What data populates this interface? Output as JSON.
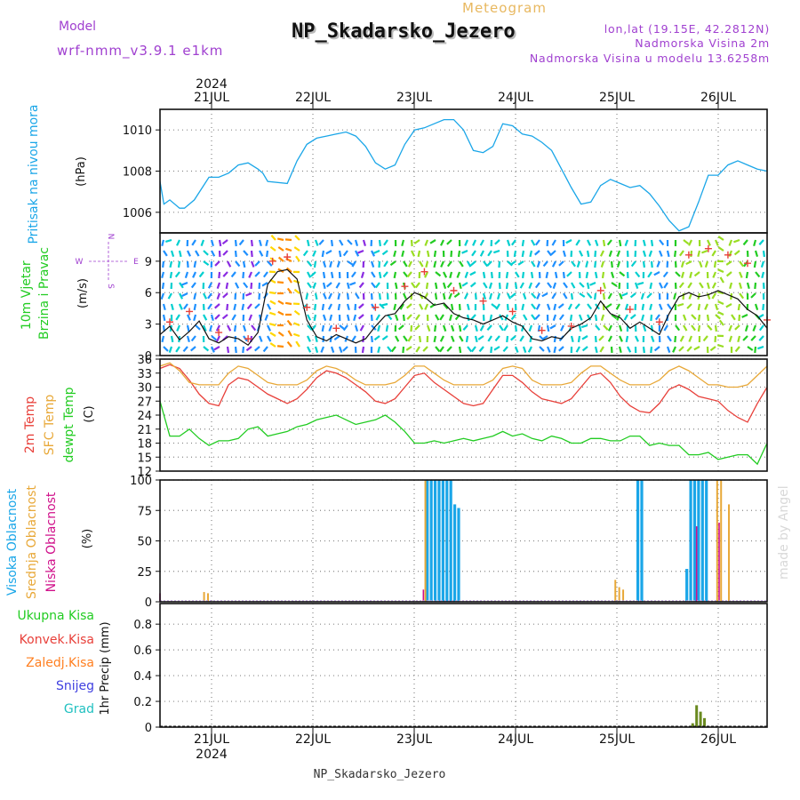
{
  "header": {
    "model_label": "Model",
    "model_name": "wrf-nmm_v3.9.1  e1km",
    "meteogram_label": "Meteogram",
    "station_title": "NP_Skadarsko_Jezero",
    "coords": "lon,lat (19.15E, 42.2812N)",
    "elevation": "Nadmorska Visina 2m",
    "model_elevation": "Nadmorska Visina u modelu 13.6258m",
    "year_top": "2024",
    "year_bottom": "2024",
    "footer_station": "NP_Skadarsko_Jezero",
    "watermark": "made by Angel"
  },
  "days": [
    "21JUL",
    "22JUL",
    "23JUL",
    "24JUL",
    "25JUL",
    "26JUL"
  ],
  "colors": {
    "pressure": "#1aa6e8",
    "temp2m": "#e8403a",
    "sfc": "#e8a838",
    "dewpt": "#22cc22",
    "wind_speed": "#111111",
    "gust": "#e8403a",
    "high_cloud": "#1aa6e8",
    "mid_cloud": "#e8a838",
    "low_cloud": "#d0108a",
    "total_precip": "#22bb22",
    "conv_precip": "#e8403a",
    "frozen_precip": "#ff7f20",
    "snow": "#4040e0",
    "hail": "#20c0c0",
    "grid": "#888888",
    "title_purple": "#a040d0"
  },
  "chart_data": [
    {
      "type": "line",
      "panel": "pressure",
      "label": "Pritisak na nivou mora",
      "ylabel": "(hPa)",
      "yticks": [
        "1006",
        "1008",
        "1010"
      ],
      "ylim": [
        1005,
        1011
      ],
      "xlim_days": [
        0,
        6.2
      ],
      "series": [
        {
          "name": "Pritisak na nivou mora",
          "x": [
            0,
            0.04,
            0.1,
            0.2,
            0.25,
            0.35,
            0.5,
            0.6,
            0.7,
            0.8,
            0.9,
            1.0,
            1.05,
            1.1,
            1.3,
            1.4,
            1.5,
            1.6,
            1.7,
            1.8,
            1.9,
            2.0,
            2.1,
            2.2,
            2.3,
            2.4,
            2.5,
            2.6,
            2.7,
            2.8,
            2.9,
            3.0,
            3.1,
            3.2,
            3.3,
            3.4,
            3.5,
            3.6,
            3.7,
            3.8,
            3.9,
            4.0,
            4.1,
            4.2,
            4.3,
            4.4,
            4.5,
            4.6,
            4.7,
            4.8,
            4.9,
            5.0,
            5.1,
            5.2,
            5.3,
            5.4,
            5.5,
            5.6,
            5.7,
            5.8,
            5.9,
            6.0,
            6.1,
            6.2
          ],
          "values": [
            1007.5,
            1006.4,
            1006.6,
            1006.2,
            1006.2,
            1006.6,
            1007.7,
            1007.7,
            1007.9,
            1008.3,
            1008.4,
            1008.1,
            1007.9,
            1007.5,
            1007.4,
            1008.5,
            1009.3,
            1009.6,
            1009.7,
            1009.8,
            1009.9,
            1009.7,
            1009.2,
            1008.4,
            1008.1,
            1008.3,
            1009.3,
            1010.0,
            1010.1,
            1010.3,
            1010.5,
            1010.5,
            1010.0,
            1009.0,
            1008.9,
            1009.2,
            1010.3,
            1010.2,
            1009.8,
            1009.7,
            1009.4,
            1009.0,
            1008.1,
            1007.2,
            1006.4,
            1006.5,
            1007.3,
            1007.6,
            1007.4,
            1007.2,
            1007.3,
            1006.9,
            1006.3,
            1005.6,
            1005.1,
            1005.3,
            1006.5,
            1007.8,
            1007.8,
            1008.3,
            1008.5,
            1008.3,
            1008.1,
            1008.0
          ]
        }
      ]
    },
    {
      "type": "line",
      "panel": "wind",
      "label": "10m Vjetar Brzina i Pravac",
      "ylabel": "(m/s)",
      "compass": [
        "N",
        "W",
        "E",
        "S"
      ],
      "yticks": [
        "0",
        "3",
        "6",
        "9"
      ],
      "ylim": [
        0,
        11.7
      ],
      "series": [
        {
          "name": "10m Vjetar Brzina",
          "x": [
            0,
            0.1,
            0.2,
            0.3,
            0.4,
            0.5,
            0.6,
            0.7,
            0.8,
            0.9,
            1.0,
            1.1,
            1.2,
            1.3,
            1.4,
            1.5,
            1.6,
            1.7,
            1.8,
            1.9,
            2.0,
            2.1,
            2.2,
            2.3,
            2.4,
            2.5,
            2.6,
            2.7,
            2.8,
            2.9,
            3.0,
            3.1,
            3.2,
            3.3,
            3.4,
            3.5,
            3.6,
            3.7,
            3.8,
            3.9,
            4.0,
            4.1,
            4.2,
            4.3,
            4.4,
            4.5,
            4.6,
            4.7,
            4.8,
            4.9,
            5.0,
            5.1,
            5.2,
            5.3,
            5.4,
            5.5,
            5.6,
            5.7,
            5.8,
            5.9,
            6.0,
            6.1,
            6.2
          ],
          "values": [
            2.0,
            2.8,
            1.5,
            2.3,
            3.3,
            1.6,
            1.2,
            1.8,
            1.6,
            1.0,
            2.2,
            6.8,
            8.0,
            8.2,
            7.3,
            3.4,
            1.8,
            1.4,
            2.0,
            1.6,
            1.2,
            1.6,
            2.8,
            3.8,
            4.0,
            5.2,
            6.0,
            5.6,
            4.8,
            5.0,
            4.0,
            3.6,
            3.4,
            3.0,
            3.4,
            3.8,
            3.2,
            2.8,
            1.6,
            1.4,
            1.8,
            1.6,
            2.6,
            3.0,
            3.6,
            5.2,
            4.0,
            3.6,
            2.6,
            3.2,
            2.6,
            2.0,
            4.0,
            5.6,
            6.0,
            5.6,
            5.8,
            6.2,
            5.8,
            5.4,
            4.4,
            3.8,
            2.6
          ]
        },
        {
          "name": "Udari vjetra",
          "x": [
            0.1,
            0.3,
            0.6,
            0.9,
            1.15,
            1.3,
            1.5,
            1.8,
            2.2,
            2.5,
            2.7,
            3.0,
            3.3,
            3.6,
            3.9,
            4.2,
            4.5,
            4.8,
            5.1,
            5.4,
            5.6,
            5.8,
            6.0,
            6.2
          ],
          "values": [
            3.2,
            4.2,
            2.2,
            1.6,
            9.0,
            9.4,
            4.6,
            2.6,
            4.6,
            6.6,
            8.0,
            6.2,
            5.2,
            4.2,
            2.4,
            2.8,
            6.2,
            4.4,
            3.2,
            9.6,
            10.2,
            9.6,
            8.8,
            3.4
          ]
        }
      ]
    },
    {
      "type": "line",
      "panel": "temperature",
      "labels": [
        "2m Temp",
        "SFC Temp",
        "dewpt Temp"
      ],
      "ylabel": "(C)",
      "yticks": [
        "12",
        "15",
        "18",
        "21",
        "24",
        "27",
        "30",
        "33",
        "36"
      ],
      "ylim": [
        12,
        36
      ],
      "series": [
        {
          "name": "2m Temp",
          "x": [
            0,
            0.1,
            0.2,
            0.3,
            0.4,
            0.5,
            0.6,
            0.7,
            0.8,
            0.9,
            1.0,
            1.1,
            1.2,
            1.3,
            1.4,
            1.5,
            1.6,
            1.7,
            1.8,
            1.9,
            2.0,
            2.1,
            2.2,
            2.3,
            2.4,
            2.5,
            2.6,
            2.7,
            2.8,
            2.9,
            3.0,
            3.1,
            3.2,
            3.3,
            3.4,
            3.5,
            3.6,
            3.7,
            3.8,
            3.9,
            4.0,
            4.1,
            4.2,
            4.3,
            4.4,
            4.5,
            4.6,
            4.7,
            4.8,
            4.9,
            5.0,
            5.1,
            5.2,
            5.3,
            5.4,
            5.5,
            5.6,
            5.7,
            5.8,
            5.9,
            6.0,
            6.1,
            6.2
          ],
          "values": [
            34.0,
            34.8,
            34.0,
            31.5,
            28.5,
            26.5,
            26.0,
            30.5,
            32.0,
            31.5,
            30.0,
            28.5,
            27.5,
            26.5,
            27.5,
            29.5,
            32.0,
            33.5,
            33.0,
            32.0,
            30.5,
            29.0,
            27.0,
            26.5,
            27.5,
            30.0,
            32.5,
            33.0,
            31.0,
            29.5,
            28.0,
            26.5,
            26.0,
            26.5,
            29.5,
            32.5,
            32.5,
            31.0,
            29.0,
            27.5,
            27.0,
            26.5,
            27.5,
            30.0,
            32.5,
            33.0,
            31.0,
            28.0,
            26.0,
            24.8,
            24.5,
            26.5,
            29.5,
            30.5,
            29.5,
            28.0,
            27.5,
            27.0,
            25.0,
            23.5,
            22.5,
            26.5,
            30.0
          ]
        },
        {
          "name": "SFC Temp",
          "x": [
            0,
            0.1,
            0.2,
            0.3,
            0.4,
            0.5,
            0.6,
            0.7,
            0.8,
            0.9,
            1.0,
            1.1,
            1.2,
            1.3,
            1.4,
            1.5,
            1.6,
            1.7,
            1.8,
            1.9,
            2.0,
            2.1,
            2.2,
            2.3,
            2.4,
            2.5,
            2.6,
            2.7,
            2.8,
            2.9,
            3.0,
            3.1,
            3.2,
            3.3,
            3.4,
            3.5,
            3.6,
            3.7,
            3.8,
            3.9,
            4.0,
            4.1,
            4.2,
            4.3,
            4.4,
            4.5,
            4.6,
            4.7,
            4.8,
            4.9,
            5.0,
            5.1,
            5.2,
            5.3,
            5.4,
            5.5,
            5.6,
            5.7,
            5.8,
            5.9,
            6.0,
            6.1,
            6.2
          ],
          "values": [
            34.5,
            35.2,
            33.5,
            31.0,
            30.5,
            30.5,
            30.5,
            33.0,
            34.5,
            34.0,
            32.5,
            31.0,
            30.5,
            30.5,
            30.5,
            31.5,
            33.5,
            34.5,
            34.0,
            33.0,
            31.5,
            30.5,
            30.5,
            30.5,
            31.0,
            32.5,
            34.5,
            34.5,
            33.0,
            31.5,
            30.5,
            30.5,
            30.5,
            30.5,
            31.5,
            34.0,
            34.5,
            34.0,
            31.5,
            30.5,
            30.5,
            30.5,
            31.0,
            33.0,
            34.5,
            34.5,
            33.0,
            31.5,
            30.5,
            30.5,
            30.5,
            31.5,
            33.5,
            34.5,
            33.5,
            32.0,
            30.5,
            30.5,
            30.0,
            30.0,
            30.5,
            32.5,
            34.5
          ]
        },
        {
          "name": "dewpt Temp",
          "x": [
            0,
            0.1,
            0.2,
            0.3,
            0.4,
            0.5,
            0.6,
            0.7,
            0.8,
            0.9,
            1.0,
            1.1,
            1.2,
            1.3,
            1.4,
            1.5,
            1.6,
            1.7,
            1.8,
            1.9,
            2.0,
            2.1,
            2.2,
            2.3,
            2.4,
            2.5,
            2.6,
            2.7,
            2.8,
            2.9,
            3.0,
            3.1,
            3.2,
            3.3,
            3.4,
            3.5,
            3.6,
            3.7,
            3.8,
            3.9,
            4.0,
            4.1,
            4.2,
            4.3,
            4.4,
            4.5,
            4.6,
            4.7,
            4.8,
            4.9,
            5.0,
            5.1,
            5.2,
            5.3,
            5.4,
            5.5,
            5.6,
            5.7,
            5.8,
            5.9,
            6.0,
            6.1,
            6.2
          ],
          "values": [
            27.0,
            19.5,
            19.5,
            21.0,
            19.0,
            17.5,
            18.5,
            18.5,
            19.0,
            21.0,
            21.5,
            19.5,
            20.0,
            20.5,
            21.5,
            22.0,
            23.0,
            23.5,
            24.0,
            23.0,
            22.0,
            22.5,
            23.0,
            24.0,
            22.5,
            20.5,
            18.0,
            18.0,
            18.5,
            18.0,
            18.5,
            19.0,
            18.5,
            19.0,
            19.5,
            20.5,
            19.5,
            20.0,
            19.0,
            18.5,
            19.5,
            19.0,
            18.0,
            18.0,
            19.0,
            19.0,
            18.5,
            18.5,
            19.5,
            19.5,
            17.5,
            18.0,
            17.5,
            17.5,
            15.5,
            15.5,
            16.0,
            14.5,
            15.0,
            15.5,
            15.5,
            13.5,
            18.0
          ]
        }
      ]
    },
    {
      "type": "bar",
      "panel": "clouds",
      "labels": [
        "Visoka Oblacnost",
        "Srednja Oblacnost",
        "Niska Oblacnost"
      ],
      "ylabel": "(%)",
      "yticks": [
        "0",
        "25",
        "50",
        "75",
        "100"
      ],
      "ylim": [
        0,
        100
      ],
      "series": [
        {
          "name": "Visoka Oblacnost",
          "x": [
            2.73,
            2.77,
            2.81,
            2.85,
            2.89,
            2.93,
            2.97,
            3.01,
            3.05,
            4.88,
            4.92,
            5.38,
            5.42,
            5.46,
            5.5,
            5.54,
            5.58
          ],
          "values": [
            100,
            100,
            100,
            100,
            100,
            100,
            100,
            80,
            77,
            100,
            100,
            27,
            100,
            100,
            100,
            100,
            100
          ]
        },
        {
          "name": "Srednja Oblacnost",
          "x": [
            0.45,
            0.49,
            2.71,
            4.65,
            4.69,
            4.73,
            5.69,
            5.73,
            5.81
          ],
          "values": [
            8,
            7,
            100,
            18,
            12,
            10,
            100,
            100,
            80
          ]
        },
        {
          "name": "Niska Oblacnost",
          "x": [
            0.0,
            2.69,
            5.48,
            5.71
          ],
          "values": [
            7,
            10,
            62,
            65
          ]
        }
      ]
    },
    {
      "type": "bar",
      "panel": "precipitation",
      "labels": [
        "Ukupna Kisa",
        "Konvek.Kisa",
        "Zaledj.Kisa",
        "Snijeg",
        "Grad"
      ],
      "ylabel": "1hr Precip (mm)",
      "yticks": [
        "0",
        "0.2",
        "0.4",
        "0.6",
        "0.8"
      ],
      "ylim": [
        0,
        0.96
      ],
      "series": [
        {
          "name": "Ukupna Kisa",
          "x": [
            5.44,
            5.48,
            5.52,
            5.56
          ],
          "values": [
            0.03,
            0.17,
            0.12,
            0.07
          ]
        }
      ]
    }
  ]
}
